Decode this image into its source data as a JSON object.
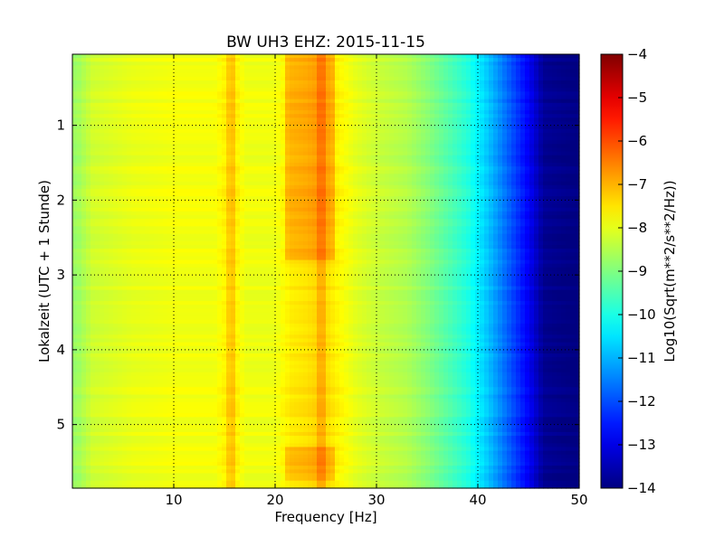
{
  "chart_data": {
    "type": "heatmap",
    "title": "BW UH3 EHZ: 2015-11-15",
    "xlabel": "Frequency [Hz]",
    "ylabel": "Lokalzeit (UTC + 1 Stunde)",
    "xlim": [
      0,
      50
    ],
    "ylim": [
      5.85,
      0.05
    ],
    "y_inverted": true,
    "xticks": [
      10,
      20,
      30,
      40,
      50
    ],
    "yticks": [
      1,
      2,
      3,
      4,
      5
    ],
    "grid": true,
    "grid_style": "dotted",
    "colormap": "jet",
    "colorbar": {
      "label": "Log10(Sqrt(m**2/s**2/Hz))",
      "min": -14,
      "max": -4,
      "ticks": [
        -4,
        -5,
        -6,
        -7,
        -8,
        -9,
        -10,
        -11,
        -12,
        -13,
        -14
      ]
    },
    "frequency_profile": [
      {
        "f": 0.5,
        "v": -8.7
      },
      {
        "f": 2,
        "v": -8.2
      },
      {
        "f": 6,
        "v": -7.95
      },
      {
        "f": 10,
        "v": -7.85
      },
      {
        "f": 14,
        "v": -7.85
      },
      {
        "f": 15.8,
        "v": -7.45
      },
      {
        "f": 17,
        "v": -7.9
      },
      {
        "f": 20,
        "v": -7.9
      },
      {
        "f": 21.5,
        "v": -7.55
      },
      {
        "f": 23,
        "v": -7.45
      },
      {
        "f": 24.6,
        "v": -7.25
      },
      {
        "f": 26,
        "v": -7.6
      },
      {
        "f": 28,
        "v": -8.0
      },
      {
        "f": 30,
        "v": -8.25
      },
      {
        "f": 33,
        "v": -8.5
      },
      {
        "f": 35,
        "v": -8.9
      },
      {
        "f": 37,
        "v": -9.4
      },
      {
        "f": 39,
        "v": -9.9
      },
      {
        "f": 41,
        "v": -10.8
      },
      {
        "f": 43,
        "v": -11.8
      },
      {
        "f": 45,
        "v": -12.8
      },
      {
        "f": 46.5,
        "v": -13.8
      },
      {
        "f": 50,
        "v": -14.0
      }
    ],
    "features": [
      {
        "kind": "band",
        "f_start": 21,
        "f_end": 26,
        "t_start": 0.05,
        "t_end": 2.8,
        "delta": 0.55
      },
      {
        "kind": "band",
        "f_start": 21,
        "f_end": 26,
        "t_start": 5.3,
        "t_end": 5.75,
        "delta": 0.45
      },
      {
        "kind": "line",
        "f": 15.8,
        "t_start": 0.05,
        "t_end": 5.85,
        "delta": 0.3
      },
      {
        "kind": "line",
        "f": 24.6,
        "t_start": 0.05,
        "t_end": 5.85,
        "delta": 0.35
      }
    ]
  }
}
